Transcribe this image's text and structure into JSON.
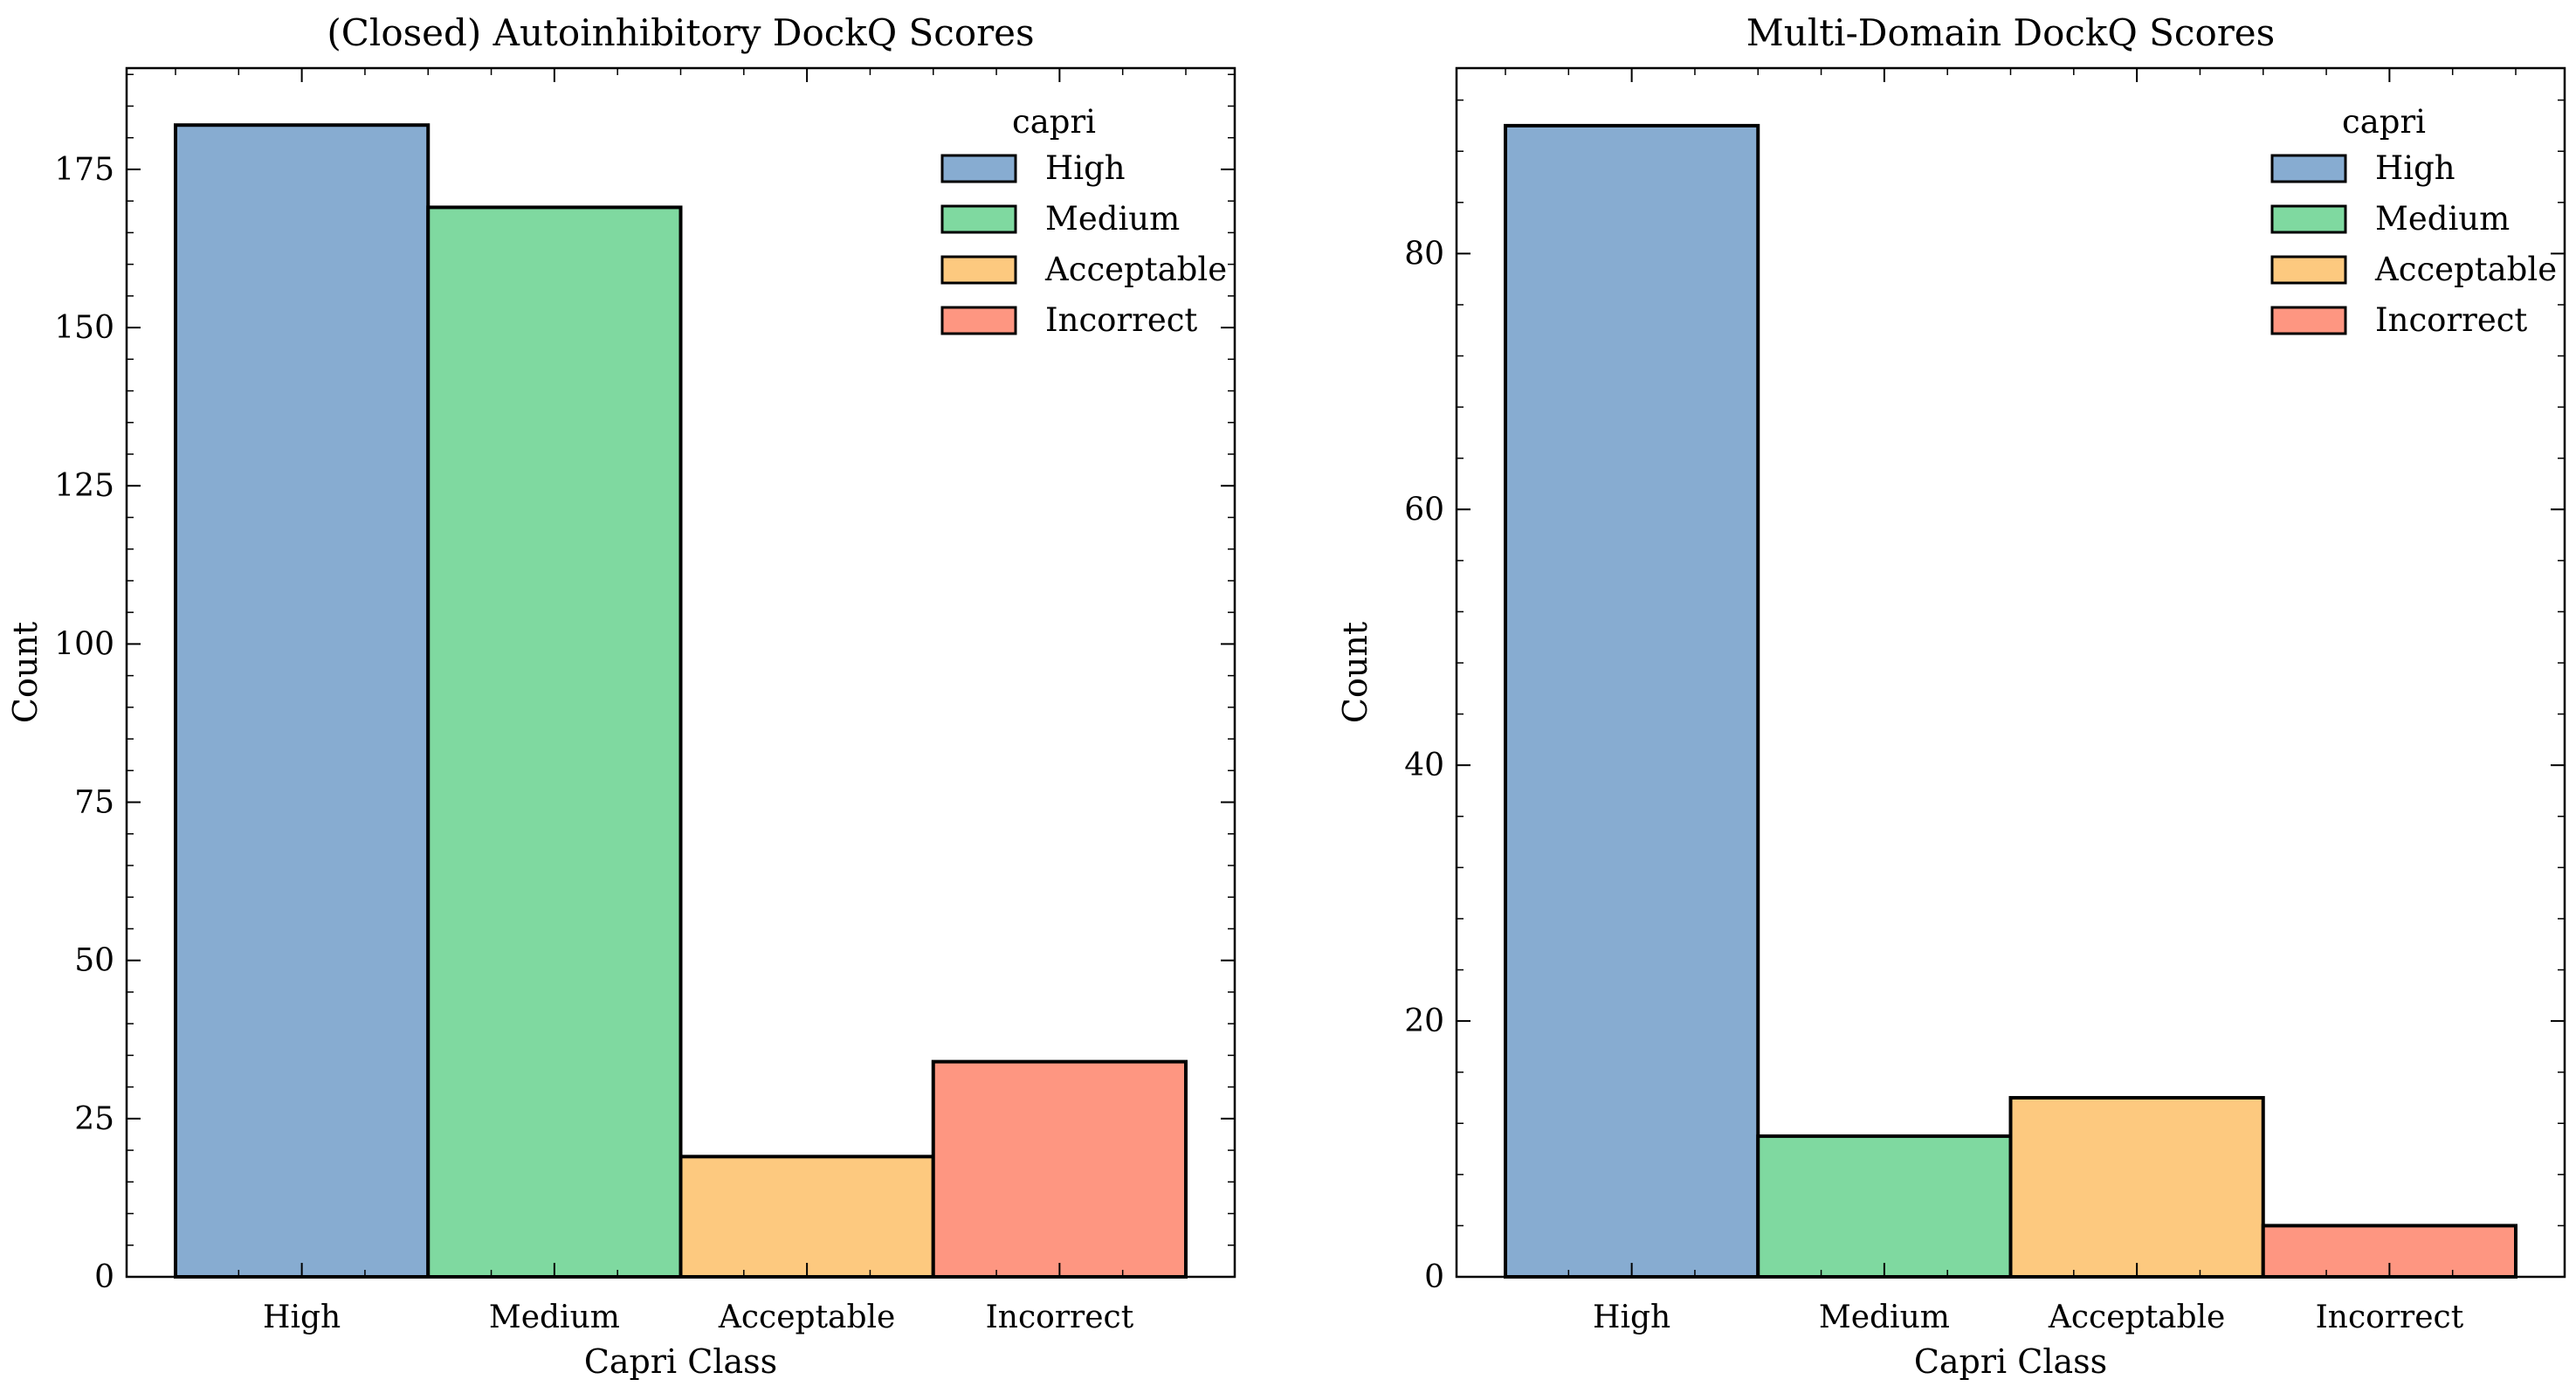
{
  "chart_data": [
    {
      "type": "bar",
      "title": "(Closed) Autoinhibitory DockQ Scores",
      "xlabel": "Capri Class",
      "ylabel": "Count",
      "categories": [
        "High",
        "Medium",
        "Acceptable",
        "Incorrect"
      ],
      "values": [
        182,
        169,
        19,
        34
      ],
      "ylim": [
        0,
        191
      ],
      "yticks": [
        0,
        25,
        50,
        75,
        100,
        125,
        150,
        175
      ],
      "legend": {
        "title": "capri",
        "placement": "top-right",
        "entries": [
          "High",
          "Medium",
          "Acceptable",
          "Incorrect"
        ]
      },
      "colors": [
        "#87acd1",
        "#7fd9a0",
        "#fdc97f",
        "#fe9681"
      ],
      "grid": false
    },
    {
      "type": "bar",
      "title": "Multi-Domain DockQ Scores",
      "xlabel": "Capri Class",
      "ylabel": "Count",
      "categories": [
        "High",
        "Medium",
        "Acceptable",
        "Incorrect"
      ],
      "values": [
        90,
        11,
        14,
        4
      ],
      "ylim": [
        0,
        94.5
      ],
      "yticks": [
        0,
        20,
        40,
        60,
        80
      ],
      "legend": {
        "title": "capri",
        "placement": "top-right",
        "entries": [
          "High",
          "Medium",
          "Acceptable",
          "Incorrect"
        ]
      },
      "colors": [
        "#87acd1",
        "#7fd9a0",
        "#fdc97f",
        "#fe9681"
      ],
      "grid": false
    }
  ]
}
